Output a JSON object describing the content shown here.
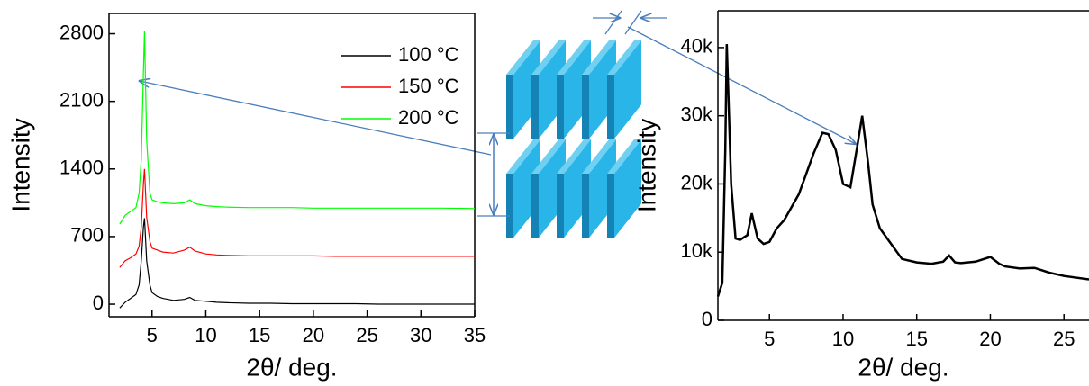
{
  "chart_data": [
    {
      "type": "line",
      "x_label": "2θ/ deg.",
      "y_label": "Intensity",
      "x": [
        2,
        2.5,
        3,
        3.5,
        3.8,
        4,
        4.2,
        4.3,
        4.5,
        4.8,
        5,
        5.5,
        6,
        7,
        8,
        8.5,
        9,
        10,
        11,
        12,
        14,
        16,
        18,
        20,
        22,
        24,
        26,
        28,
        30,
        32,
        35
      ],
      "series": [
        {
          "name": "100 °C",
          "color": "#000000",
          "values": [
            -40,
            20,
            60,
            100,
            200,
            450,
            800,
            890,
            450,
            200,
            120,
            80,
            60,
            40,
            50,
            70,
            40,
            30,
            20,
            15,
            10,
            10,
            5,
            5,
            5,
            5,
            0,
            0,
            0,
            0,
            0
          ]
        },
        {
          "name": "150 °C",
          "color": "#ff0000",
          "values": [
            380,
            450,
            480,
            520,
            600,
            800,
            1250,
            1400,
            900,
            650,
            580,
            560,
            540,
            530,
            560,
            590,
            550,
            520,
            510,
            505,
            500,
            500,
            500,
            500,
            495,
            495,
            495,
            495,
            495,
            495,
            495
          ]
        },
        {
          "name": "200 °C",
          "color": "#00ff00",
          "values": [
            830,
            920,
            960,
            1000,
            1150,
            1500,
            2400,
            2830,
            1700,
            1150,
            1080,
            1060,
            1050,
            1040,
            1050,
            1080,
            1040,
            1020,
            1010,
            1005,
            1000,
            1000,
            1000,
            995,
            995,
            995,
            995,
            995,
            995,
            995,
            990
          ]
        }
      ],
      "xlim": [
        1,
        35
      ],
      "xticks": [
        5,
        10,
        15,
        20,
        25,
        30,
        35
      ],
      "ylim": [
        -130,
        3010
      ],
      "yticks": [
        0,
        700,
        1400,
        2100,
        2800
      ],
      "legend": "upper right"
    },
    {
      "type": "line",
      "x_label": "2θ/ deg.",
      "y_label": "Intensity",
      "x": [
        1.5,
        1.8,
        2,
        2.1,
        2.2,
        2.4,
        2.7,
        3,
        3.5,
        3.8,
        4.2,
        4.6,
        5,
        5.5,
        6,
        7,
        8,
        8.6,
        9,
        9.5,
        10,
        10.5,
        11,
        11.3,
        11.7,
        12,
        12.5,
        13,
        14,
        15,
        16,
        16.8,
        17.2,
        17.6,
        18,
        19,
        20,
        20.6,
        21,
        22,
        23,
        24,
        25,
        26.7
      ],
      "series": [
        {
          "color": "#000000",
          "values": [
            3500,
            5500,
            25000,
            40500,
            34000,
            20000,
            12000,
            11800,
            12500,
            15700,
            12000,
            11200,
            11500,
            13500,
            14700,
            18500,
            24500,
            27500,
            27300,
            25000,
            20000,
            19500,
            26000,
            30000,
            23000,
            17000,
            13500,
            12000,
            9000,
            8500,
            8300,
            8600,
            9500,
            8500,
            8400,
            8600,
            9300,
            8300,
            7900,
            7600,
            7700,
            7000,
            6500,
            6000
          ]
        }
      ],
      "xlim": [
        1.5,
        26.7
      ],
      "xticks": [
        5,
        10,
        15,
        20,
        25
      ],
      "ylim": [
        0,
        45400
      ],
      "yticks": [
        0,
        {
          "value": 10000,
          "label": "10k"
        },
        {
          "value": 20000,
          "label": "20k"
        },
        {
          "value": 30000,
          "label": "30k"
        },
        {
          "value": 40000,
          "label": "40k"
        }
      ]
    }
  ]
}
